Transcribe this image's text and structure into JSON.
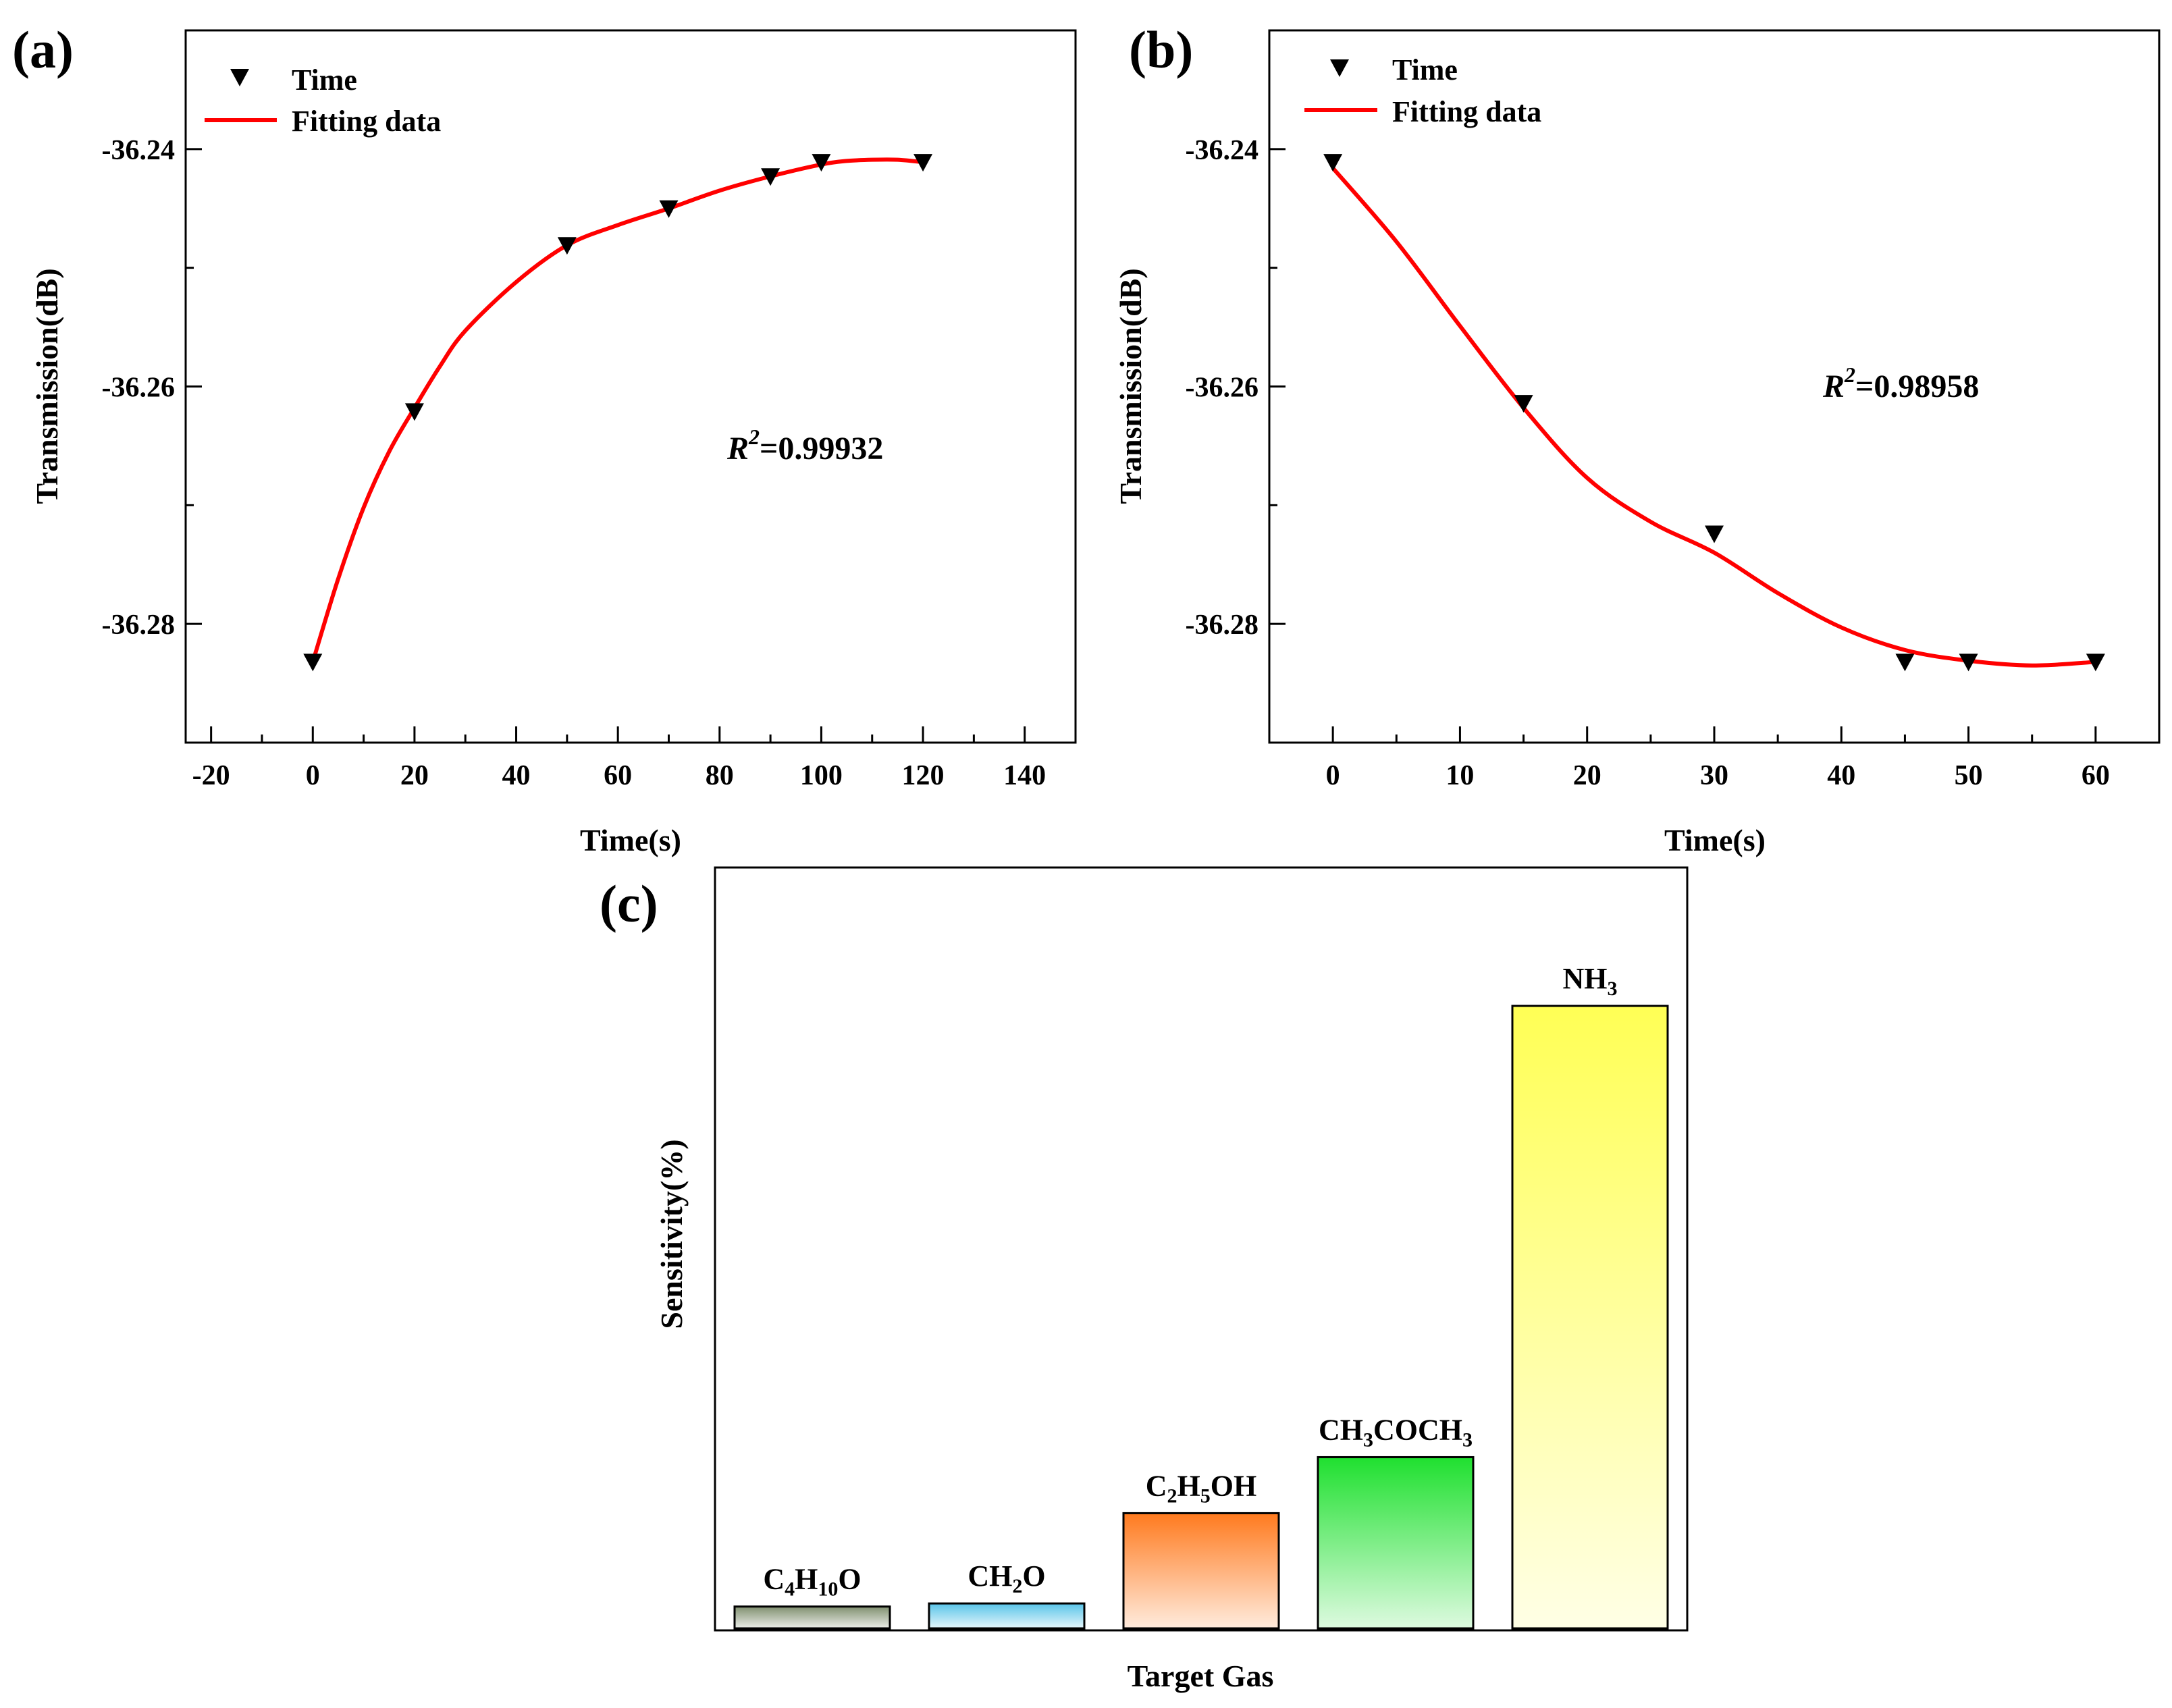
{
  "chart_data": [
    {
      "id": "a",
      "type": "scatter",
      "panel_label": "(a)",
      "xlabel": "Time(s)",
      "ylabel": "Transmission(dB)",
      "xlim": [
        -25,
        150
      ],
      "ylim": [
        -36.29,
        -36.23
      ],
      "xticks": [
        -20,
        0,
        20,
        40,
        60,
        80,
        100,
        120,
        140
      ],
      "xtick_labels": [
        "-20",
        "0",
        "20",
        "40",
        "60",
        "80",
        "100",
        "120",
        "140"
      ],
      "yticks": [
        -36.24,
        -36.26,
        -36.28
      ],
      "ytick_labels": [
        "-36.24",
        "-36.26",
        "-36.28"
      ],
      "legend": [
        "Time",
        "Fitting data"
      ],
      "legend_position": "top-left",
      "annotation": {
        "r_label": "R",
        "r_sup": "2",
        "value": "=0.99932"
      },
      "series": [
        {
          "name": "Time",
          "marker": "down-triangle",
          "color": "#000000",
          "x": [
            0,
            20,
            50,
            70,
            90,
            100,
            120
          ],
          "y": [
            -36.2832,
            -36.2621,
            -36.2481,
            -36.245,
            -36.2423,
            -36.2411,
            -36.2411
          ]
        },
        {
          "name": "Fitting data",
          "line": true,
          "color": "#ff0000",
          "x": [
            0,
            5,
            10,
            15,
            20,
            25,
            30,
            40,
            50,
            60,
            70,
            80,
            90,
            100,
            105,
            110,
            115,
            120
          ],
          "y": [
            -36.2832,
            -36.2762,
            -36.2702,
            -36.2655,
            -36.2618,
            -36.2583,
            -36.2553,
            -36.2512,
            -36.2481,
            -36.2464,
            -36.245,
            -36.2435,
            -36.2423,
            -36.2413,
            -36.241,
            -36.2409,
            -36.2409,
            -36.2411
          ]
        }
      ]
    },
    {
      "id": "b",
      "type": "scatter",
      "panel_label": "(b)",
      "xlabel": "Time(s)",
      "ylabel": "Transmission(dB)",
      "xlim": [
        -5,
        65
      ],
      "ylim": [
        -36.29,
        -36.23
      ],
      "xticks": [
        0,
        10,
        20,
        30,
        40,
        50,
        60
      ],
      "xtick_labels": [
        "0",
        "10",
        "20",
        "30",
        "40",
        "50",
        "60"
      ],
      "yticks": [
        -36.24,
        -36.26,
        -36.28
      ],
      "ytick_labels": [
        "-36.24",
        "-36.26",
        "-36.28"
      ],
      "legend": [
        "Time",
        "Fitting data"
      ],
      "legend_position": "top-left",
      "annotation": {
        "r_label": "R",
        "r_sup": "2",
        "value": "=0.98958"
      },
      "series": [
        {
          "name": "Time",
          "marker": "down-triangle",
          "color": "#000000",
          "x": [
            0,
            15,
            30,
            45,
            50,
            60
          ],
          "y": [
            -36.2411,
            -36.2614,
            -36.2724,
            -36.2832,
            -36.2832,
            -36.2832
          ]
        },
        {
          "name": "Fitting data",
          "line": true,
          "color": "#ff0000",
          "x": [
            0,
            5,
            10,
            15,
            20,
            25,
            30,
            35,
            40,
            45,
            50,
            55,
            60
          ],
          "y": [
            -36.2416,
            -36.2478,
            -36.2549,
            -36.2618,
            -36.2677,
            -36.2714,
            -36.274,
            -36.2774,
            -36.2803,
            -36.2822,
            -36.2831,
            -36.2835,
            -36.2832
          ]
        }
      ]
    },
    {
      "id": "c",
      "type": "bar",
      "panel_label": "(c)",
      "xlabel": "Target Gas",
      "ylabel": "Sensitivity(%)",
      "ylim": [
        0,
        100
      ],
      "categories": [
        "C4H10O",
        "CH2O",
        "C2H5OH",
        "CH3COCH3",
        "NH3"
      ],
      "label_parts": [
        [
          [
            "C",
            ""
          ],
          [
            "4",
            "sub"
          ],
          [
            "H",
            ""
          ],
          [
            "10",
            "sub"
          ],
          [
            "O",
            ""
          ]
        ],
        [
          [
            "CH",
            ""
          ],
          [
            "2",
            "sub"
          ],
          [
            "O",
            ""
          ]
        ],
        [
          [
            "C",
            ""
          ],
          [
            "2",
            "sub"
          ],
          [
            "H",
            ""
          ],
          [
            "5",
            "sub"
          ],
          [
            "OH",
            ""
          ]
        ],
        [
          [
            "CH",
            ""
          ],
          [
            "3",
            "sub"
          ],
          [
            "COCH",
            ""
          ],
          [
            "3",
            "sub"
          ]
        ],
        [
          [
            "NH",
            ""
          ],
          [
            "3",
            "sub"
          ]
        ]
      ],
      "values": [
        3.5,
        4.0,
        18.5,
        27.5,
        100
      ],
      "colors": [
        "#808f6f",
        "#58c4e8",
        "#ff7a1e",
        "#1fe02f",
        "#ffff55"
      ]
    }
  ]
}
